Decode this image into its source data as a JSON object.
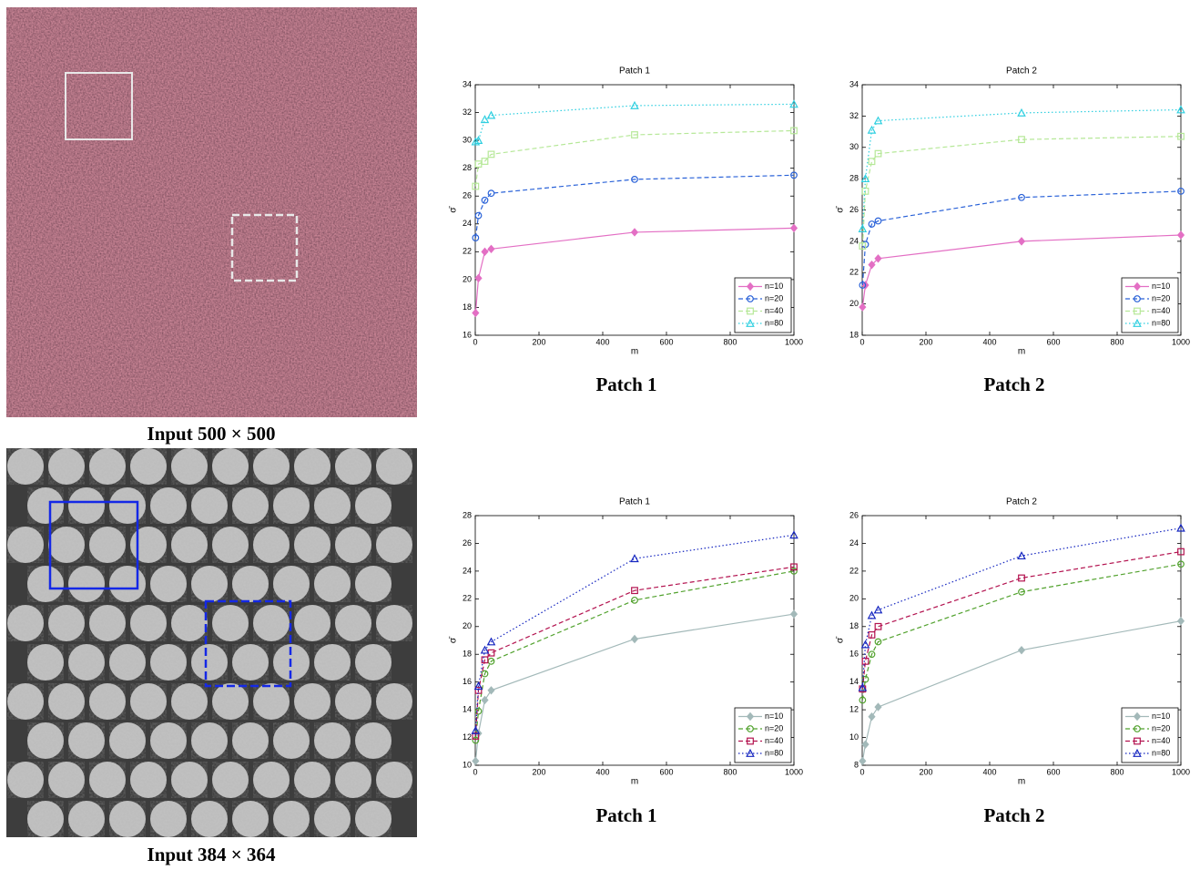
{
  "images": [
    {
      "caption": "Input 500 × 500"
    },
    {
      "caption": "Input 384 × 364"
    }
  ],
  "chart_data": [
    {
      "type": "line",
      "title": "Patch 1",
      "caption": "Patch 1",
      "xlabel": "m",
      "ylabel": "σ̄",
      "x": [
        1,
        10,
        30,
        50,
        500,
        1000
      ],
      "xlim": [
        0,
        1000
      ],
      "xticks": [
        0,
        200,
        400,
        600,
        800,
        1000
      ],
      "ylim": [
        16,
        34
      ],
      "yticks": [
        16,
        18,
        20,
        22,
        24,
        26,
        28,
        30,
        32,
        34
      ],
      "legend": "lower right",
      "series": [
        {
          "name": "n=10",
          "color": "#e36fc4",
          "dash": "solid",
          "marker": "diamond",
          "values": [
            17.6,
            20.1,
            22.0,
            22.2,
            23.4,
            23.7
          ]
        },
        {
          "name": "n=20",
          "color": "#2a62d8",
          "dash": "dashed",
          "marker": "circle",
          "values": [
            23.0,
            24.6,
            25.7,
            26.2,
            27.2,
            27.5
          ]
        },
        {
          "name": "n=40",
          "color": "#b6e898",
          "dash": "dashed",
          "marker": "square",
          "values": [
            26.7,
            28.3,
            28.5,
            29.0,
            30.4,
            30.7
          ]
        },
        {
          "name": "n=80",
          "color": "#2fcfe0",
          "dash": "dotted",
          "marker": "triangle",
          "values": [
            29.9,
            30.0,
            31.5,
            31.8,
            32.5,
            32.6
          ]
        }
      ]
    },
    {
      "type": "line",
      "title": "Patch 2",
      "caption": "Patch 2",
      "xlabel": "m",
      "ylabel": "σ̄",
      "x": [
        1,
        10,
        30,
        50,
        500,
        1000
      ],
      "xlim": [
        0,
        1000
      ],
      "xticks": [
        0,
        200,
        400,
        600,
        800,
        1000
      ],
      "ylim": [
        18,
        34
      ],
      "yticks": [
        18,
        20,
        22,
        24,
        26,
        28,
        30,
        32,
        34
      ],
      "legend": "lower right",
      "series": [
        {
          "name": "n=10",
          "color": "#e36fc4",
          "dash": "solid",
          "marker": "diamond",
          "values": [
            19.8,
            21.2,
            22.5,
            22.9,
            24.0,
            24.4
          ]
        },
        {
          "name": "n=20",
          "color": "#2a62d8",
          "dash": "dashed",
          "marker": "circle",
          "values": [
            21.2,
            23.8,
            25.1,
            25.3,
            26.8,
            27.2
          ]
        },
        {
          "name": "n=40",
          "color": "#b6e898",
          "dash": "dashed",
          "marker": "square",
          "values": [
            23.7,
            27.2,
            29.1,
            29.6,
            30.5,
            30.7
          ]
        },
        {
          "name": "n=80",
          "color": "#2fcfe0",
          "dash": "dotted",
          "marker": "triangle",
          "values": [
            24.8,
            28.0,
            31.1,
            31.7,
            32.2,
            32.4
          ]
        }
      ]
    },
    {
      "type": "line",
      "title": "Patch 1",
      "caption": "Patch 1",
      "xlabel": "m",
      "ylabel": "σ̄",
      "x": [
        1,
        10,
        30,
        50,
        500,
        1000
      ],
      "xlim": [
        0,
        1000
      ],
      "xticks": [
        0,
        200,
        400,
        600,
        800,
        1000
      ],
      "ylim": [
        10,
        28
      ],
      "yticks": [
        10,
        12,
        14,
        16,
        18,
        20,
        22,
        24,
        26,
        28
      ],
      "legend": "lower right",
      "series": [
        {
          "name": "n=10",
          "color": "#a3b9b9",
          "dash": "solid",
          "marker": "diamond",
          "values": [
            10.3,
            12.3,
            14.7,
            15.4,
            19.1,
            20.9
          ]
        },
        {
          "name": "n=20",
          "color": "#52a22e",
          "dash": "dashed",
          "marker": "circle",
          "values": [
            11.8,
            13.9,
            16.6,
            17.5,
            21.9,
            24.0
          ]
        },
        {
          "name": "n=40",
          "color": "#b3124f",
          "dash": "dashed",
          "marker": "square",
          "values": [
            12.1,
            15.4,
            17.6,
            18.1,
            22.6,
            24.3
          ]
        },
        {
          "name": "n=80",
          "color": "#1526c0",
          "dash": "dotted",
          "marker": "triangle",
          "values": [
            12.5,
            15.7,
            18.3,
            18.9,
            24.9,
            26.6
          ]
        }
      ]
    },
    {
      "type": "line",
      "title": "Patch 2",
      "caption": "Patch 2",
      "xlabel": "m",
      "ylabel": "σ̄",
      "x": [
        1,
        10,
        30,
        50,
        500,
        1000
      ],
      "xlim": [
        0,
        1000
      ],
      "xticks": [
        0,
        200,
        400,
        600,
        800,
        1000
      ],
      "ylim": [
        8,
        26
      ],
      "yticks": [
        8,
        10,
        12,
        14,
        16,
        18,
        20,
        22,
        24,
        26
      ],
      "legend": "lower right",
      "series": [
        {
          "name": "n=10",
          "color": "#a3b9b9",
          "dash": "solid",
          "marker": "diamond",
          "values": [
            8.3,
            9.5,
            11.5,
            12.2,
            16.3,
            18.4
          ]
        },
        {
          "name": "n=20",
          "color": "#52a22e",
          "dash": "dashed",
          "marker": "circle",
          "values": [
            12.7,
            14.2,
            16.0,
            16.9,
            20.5,
            22.5
          ]
        },
        {
          "name": "n=40",
          "color": "#b3124f",
          "dash": "dashed",
          "marker": "square",
          "values": [
            13.5,
            15.5,
            17.4,
            18.0,
            21.5,
            23.4
          ]
        },
        {
          "name": "n=80",
          "color": "#1526c0",
          "dash": "dotted",
          "marker": "triangle",
          "values": [
            13.6,
            16.7,
            18.8,
            19.2,
            23.1,
            25.1
          ]
        }
      ]
    }
  ]
}
